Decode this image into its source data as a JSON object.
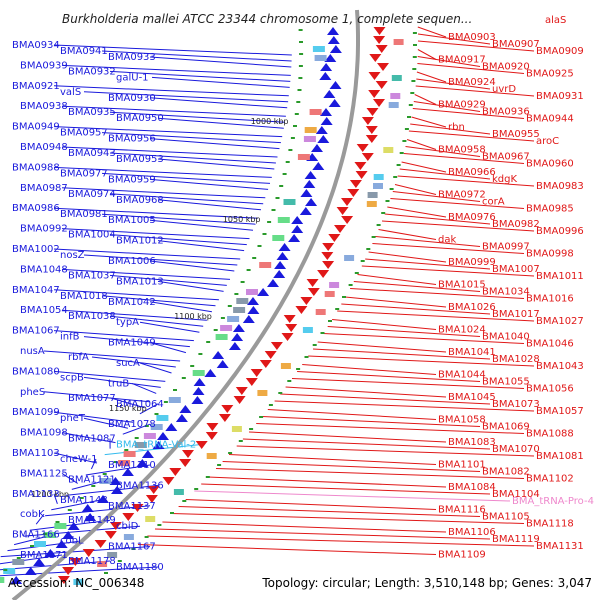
{
  "title": "Burkholderia mallei ATCC 23344 chromosome 1, complete sequen...",
  "title_suffix": "alaS",
  "footer": {
    "accession": "Accession: NC_006348",
    "summary": "Topology: circular; Length: 3,510,148 bp; Genes: 3,047"
  },
  "kbp_marks": [
    "1000 kbp",
    "1050 kbp",
    "1100 kbp",
    "1150 kbp",
    "1200 kbp"
  ],
  "colors": {
    "reverse_strand": "#1a1adc",
    "forward_strand": "#e01818",
    "rna": "#33bbee",
    "trna_pro": "#ee88cc",
    "backbone": "#9a9a9a",
    "tick": "#2a9a2a"
  },
  "left_labels": [
    "BMA0934",
    "BMA0941",
    "BMA0933",
    "BMA0939",
    "BMA0932",
    "galU-1",
    "BMA0921",
    "valS",
    "BMA0930",
    "BMA0938",
    "BMA0935",
    "BMA0950",
    "BMA0949",
    "BMA0957",
    "BMA0956",
    "BMA0948",
    "BMA0943",
    "BMA0953",
    "BMA0988",
    "BMA0977",
    "BMA0959",
    "BMA0987",
    "BMA0974",
    "BMA0968",
    "BMA0986",
    "BMA0981",
    "BMA1005",
    "BMA0992",
    "BMA1004",
    "BMA1012",
    "BMA1002",
    "nosZ",
    "BMA1006",
    "BMA1048",
    "BMA1037",
    "BMA1013",
    "BMA1047",
    "BMA1018",
    "BMA1042",
    "BMA1054",
    "BMA1038",
    "typA",
    "BMA1067",
    "infB",
    "BMA1049",
    "nusA",
    "rbfA",
    "sucA",
    "BMA1080",
    "scpB",
    "truB",
    "pheS",
    "BMA1077",
    "BMA1064",
    "BMA1099",
    "pheT",
    "BMA1078",
    "BMA1098",
    "BMA1087",
    "BMA_tRNA-Val-2",
    "BMA1103",
    "cheW-1",
    "BMA1110",
    "BMA1125",
    "BMA1121",
    "BMA1136",
    "BMA1133",
    "BMA1148",
    "BMA1137",
    "cobK",
    "BMA1149",
    "cbiD",
    "BMA1166",
    "cobL",
    "BMA1167",
    "BMA1171",
    "BMA1178",
    "BMA1180"
  ],
  "right_labels": [
    "BMA0903",
    "BMA0907",
    "BMA0909",
    "BMA0917",
    "BMA0920",
    "BMA0925",
    "BMA0924",
    "uvrD",
    "BMA0931",
    "BMA0929",
    "BMA0936",
    "BMA0944",
    "rbn",
    "BMA0955",
    "aroC",
    "BMA0958",
    "BMA0967",
    "BMA0960",
    "BMA0966",
    "kdgK",
    "BMA0983",
    "BMA0972",
    "corA",
    "BMA0985",
    "BMA0976",
    "BMA0982",
    "BMA0996",
    "dak",
    "BMA0997",
    "BMA0998",
    "BMA0999",
    "BMA1007",
    "BMA1011",
    "BMA1015",
    "BMA1034",
    "BMA1016",
    "BMA1026",
    "BMA1017",
    "BMA1027",
    "BMA1024",
    "BMA1040",
    "BMA1046",
    "BMA1041",
    "BMA1028",
    "BMA1043",
    "BMA1044",
    "BMA1055",
    "BMA1056",
    "BMA1045",
    "BMA1073",
    "BMA1057",
    "BMA1058",
    "BMA1069",
    "BMA1088",
    "BMA1083",
    "BMA1070",
    "BMA1081",
    "BMA1101",
    "BMA1082",
    "BMA1102",
    "BMA1084",
    "BMA1104",
    "BMA_tRNA-Pro-4",
    "BMA1116",
    "BMA1105",
    "BMA1118",
    "BMA1106",
    "BMA1119",
    "BMA1131",
    "BMA1109"
  ]
}
